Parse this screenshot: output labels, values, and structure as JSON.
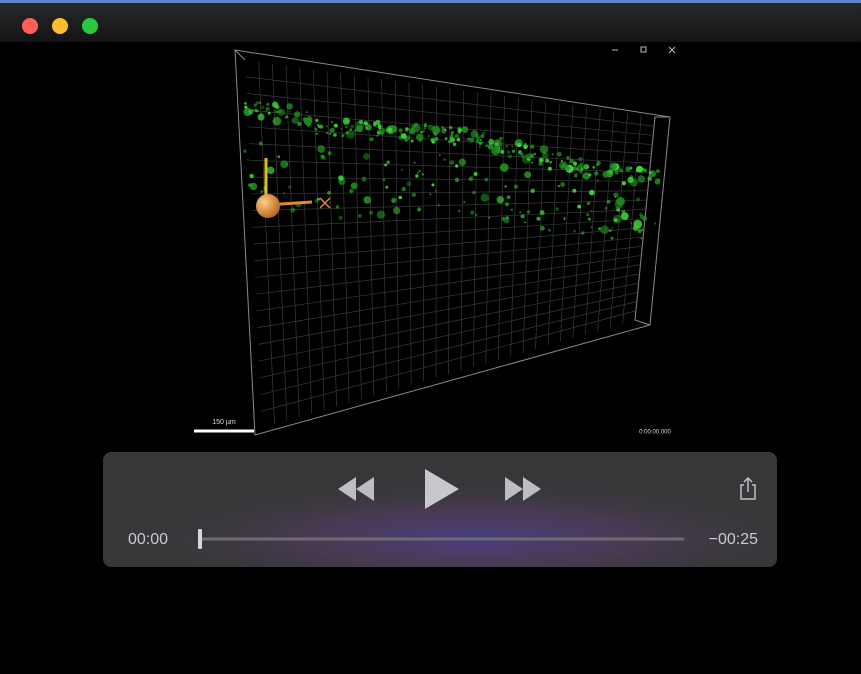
{
  "viewer": {
    "scale_bar": "150 µm",
    "timestamp": "0:00:00.000"
  },
  "controls": {
    "elapsed": "00:00",
    "remaining": "−00:25"
  }
}
